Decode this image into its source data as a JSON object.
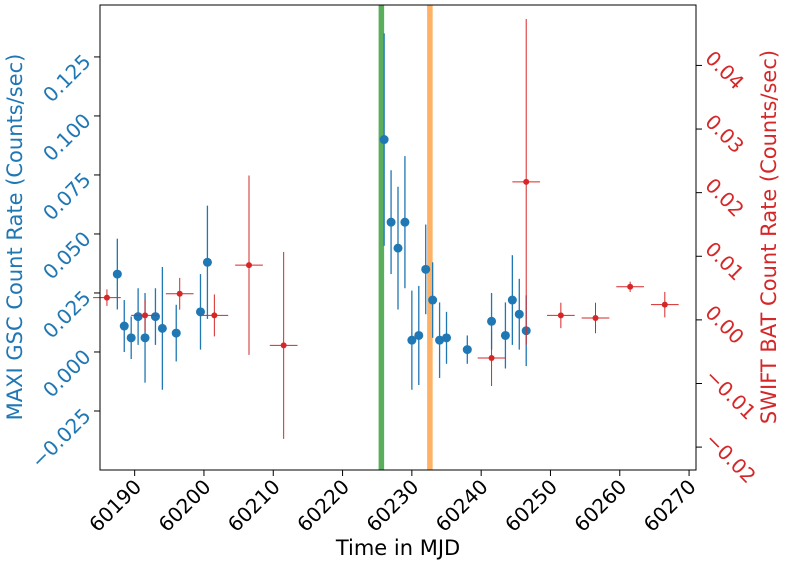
{
  "chart_data": {
    "type": "scatter",
    "xlabel": "Time in MJD",
    "ylabel_left": "MAXI GSC Count Rate (Counts/sec)",
    "ylabel_right": "SWIFT BAT Count Rate (Counts/sec)",
    "xlim": [
      60185,
      60271
    ],
    "ylim_left": [
      -0.05,
      0.147
    ],
    "ylim_right": [
      -0.0236,
      0.0495
    ],
    "x_ticks": [
      60190,
      60200,
      60210,
      60220,
      60230,
      60240,
      60250,
      60260,
      60270
    ],
    "x_tick_labels": [
      "60190",
      "60200",
      "60210",
      "60220",
      "60230",
      "60240",
      "60250",
      "60260",
      "60270"
    ],
    "y_left_ticks": [
      -0.025,
      0.0,
      0.025,
      0.05,
      0.075,
      0.1,
      0.125
    ],
    "y_left_tick_labels": [
      "−0.025",
      "0.000",
      "0.025",
      "0.050",
      "0.075",
      "0.100",
      "0.125"
    ],
    "y_right_ticks": [
      -0.02,
      -0.01,
      0.0,
      0.01,
      0.02,
      0.03,
      0.04
    ],
    "y_right_tick_labels": [
      "−0.02",
      "−0.01",
      "0.00",
      "0.01",
      "0.02",
      "0.03",
      "0.04"
    ],
    "grid": false,
    "colors": {
      "maxi": "#1f77b4",
      "swift": "#d62728",
      "green_band": "#5aad5a",
      "orange_band": "#ffb265"
    },
    "vertical_bands": [
      {
        "x0": 60225.2,
        "x1": 60226.0,
        "color": "#5aad5a"
      },
      {
        "x0": 60232.2,
        "x1": 60233.0,
        "color": "#ffb265"
      }
    ],
    "series": [
      {
        "axis": "left",
        "points": [
          {
            "x": 60187.5,
            "y": 0.033,
            "yerr": 0.015
          },
          {
            "x": 60188.5,
            "y": 0.011,
            "yerr": 0.011
          },
          {
            "x": 60189.5,
            "y": 0.006,
            "yerr": 0.009
          },
          {
            "x": 60190.5,
            "y": 0.015,
            "yerr": 0.012
          },
          {
            "x": 60191.5,
            "y": 0.006,
            "yerr": 0.019
          },
          {
            "x": 60193.0,
            "y": 0.015,
            "yerr": 0.012
          },
          {
            "x": 60194.0,
            "y": 0.01,
            "yerr": 0.026
          },
          {
            "x": 60196.0,
            "y": 0.008,
            "yerr": 0.012
          },
          {
            "x": 60199.5,
            "y": 0.017,
            "yerr": 0.016
          },
          {
            "x": 60200.5,
            "y": 0.038,
            "yerr": 0.024
          },
          {
            "x": 60226.0,
            "y": 0.09,
            "yerr": 0.045
          },
          {
            "x": 60227.0,
            "y": 0.055,
            "yerr": 0.022
          },
          {
            "x": 60228.0,
            "y": 0.044,
            "yerr": 0.026
          },
          {
            "x": 60229.0,
            "y": 0.055,
            "yerr": 0.028
          },
          {
            "x": 60230.0,
            "y": 0.005,
            "yerr": 0.021
          },
          {
            "x": 60231.0,
            "y": 0.007,
            "yerr": 0.021
          },
          {
            "x": 60232.0,
            "y": 0.035,
            "yerr": 0.019
          },
          {
            "x": 60233.0,
            "y": 0.022,
            "yerr": 0.016
          },
          {
            "x": 60234.0,
            "y": 0.005,
            "yerr": 0.016
          },
          {
            "x": 60235.0,
            "y": 0.006,
            "yerr": 0.011
          },
          {
            "x": 60238.0,
            "y": 0.001,
            "yerr": 0.006
          },
          {
            "x": 60241.5,
            "y": 0.013,
            "yerr": 0.012
          },
          {
            "x": 60243.5,
            "y": 0.007,
            "yerr": 0.014
          },
          {
            "x": 60244.5,
            "y": 0.022,
            "yerr": 0.019
          },
          {
            "x": 60245.5,
            "y": 0.016,
            "yerr": 0.015
          },
          {
            "x": 60246.5,
            "y": 0.009,
            "yerr": 0.015
          }
        ]
      },
      {
        "axis": "right",
        "points": [
          {
            "x": 60186.0,
            "y": 0.0035,
            "xerr": 2.0,
            "yerr": 0.0013
          },
          {
            "x": 60191.5,
            "y": 0.0007,
            "xerr": 2.0,
            "yerr": 0.0025
          },
          {
            "x": 60196.5,
            "y": 0.0041,
            "xerr": 2.0,
            "yerr": 0.0025
          },
          {
            "x": 60201.5,
            "y": 0.0007,
            "xerr": 2.0,
            "yerr": 0.0033
          },
          {
            "x": 60206.5,
            "y": 0.0086,
            "xerr": 2.0,
            "yerr": 0.0141
          },
          {
            "x": 60211.5,
            "y": -0.004,
            "xerr": 2.0,
            "yerr": 0.0147
          },
          {
            "x": 60241.5,
            "y": -0.006,
            "xerr": 2.0,
            "yerr": 0.0044
          },
          {
            "x": 60246.5,
            "y": 0.0217,
            "xerr": 2.0,
            "yerr": 0.0256
          },
          {
            "x": 60251.5,
            "y": 0.0007,
            "xerr": 2.0,
            "yerr": 0.002
          },
          {
            "x": 60256.5,
            "y": 0.0003,
            "xerr": 2.0,
            "yerr": 0.0024
          },
          {
            "x": 60261.5,
            "y": 0.0052,
            "xerr": 2.0,
            "yerr": 0.0008
          },
          {
            "x": 60266.5,
            "y": 0.0024,
            "xerr": 2.0,
            "yerr": 0.002
          }
        ]
      }
    ]
  }
}
